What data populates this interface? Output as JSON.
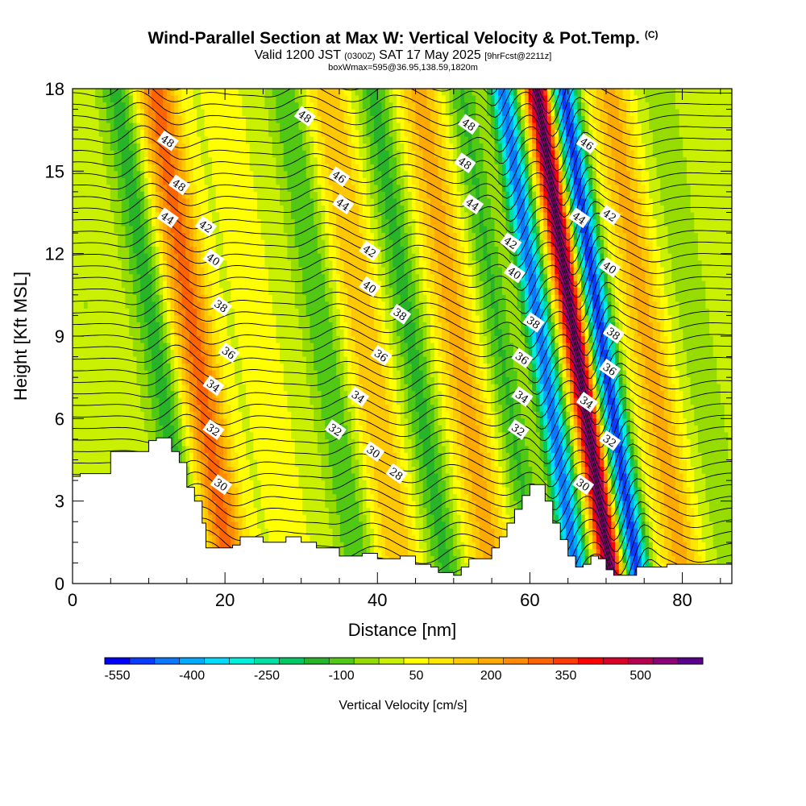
{
  "title": {
    "main": "Wind-Parallel Section at Max W: Vertical Velocity & Pot.Temp.",
    "tag": "(C)",
    "valid_a": "Valid 1200 JST",
    "valid_utc": "(0300Z)",
    "valid_b": "SAT 17 May 2025",
    "fcst": "[9hrFcst@2211z]",
    "box": "boxWmax=595@36.95,138.59,1820m"
  },
  "chart_data": {
    "type": "heatmap",
    "xlabel": "Distance [nm]",
    "ylabel": "Height [Kft MSL]",
    "xlim": [
      0,
      86.5
    ],
    "ylim": [
      0,
      18
    ],
    "x_ticks": [
      0,
      20,
      40,
      60,
      80
    ],
    "y_ticks": [
      0,
      3,
      6,
      9,
      12,
      15,
      18
    ],
    "colorbar": {
      "label": "Vertical Velocity [cm/s]",
      "tick_labels": [
        "-550",
        "-400",
        "-250",
        "-100",
        "50",
        "200",
        "350",
        "500"
      ],
      "tick_values": [
        -550,
        -400,
        -250,
        -100,
        50,
        200,
        350,
        500
      ],
      "levels": [
        -550,
        -500,
        -450,
        -400,
        -350,
        -300,
        -250,
        -200,
        -150,
        -100,
        -50,
        0,
        50,
        100,
        150,
        200,
        250,
        300,
        350,
        400,
        450,
        500,
        550,
        600
      ],
      "colors": [
        "#0000ff",
        "#0a3cff",
        "#0a78ff",
        "#00aaff",
        "#00dcff",
        "#00f0dc",
        "#00e0a0",
        "#00c864",
        "#28b428",
        "#50c814",
        "#96dc00",
        "#c8f000",
        "#ffff00",
        "#ffe600",
        "#ffc800",
        "#ffaa00",
        "#ff8c00",
        "#ff6400",
        "#ff3c00",
        "#ff0000",
        "#dc0028",
        "#b40050",
        "#8c0078",
        "#5a008c"
      ]
    },
    "vertical_velocity_bands": [
      {
        "x": 4,
        "w": -20,
        "width": 3.0
      },
      {
        "x": 12.5,
        "w": -150,
        "width": 2.2
      },
      {
        "x": 17.5,
        "w": 300,
        "width": 2.8
      },
      {
        "x": 26,
        "w": 60,
        "width": 3.0
      },
      {
        "x": 34.5,
        "w": -120,
        "width": 2.2
      },
      {
        "x": 40,
        "w": 180,
        "width": 2.8
      },
      {
        "x": 46,
        "w": -140,
        "width": 2.2
      },
      {
        "x": 52,
        "w": 200,
        "width": 3.0
      },
      {
        "x": 57.5,
        "w": -130,
        "width": 2.0
      },
      {
        "x": 63,
        "w": -450,
        "width": 1.6
      },
      {
        "x": 67.5,
        "w": 595,
        "width": 1.6
      },
      {
        "x": 71,
        "w": -500,
        "width": 1.6
      },
      {
        "x": 77,
        "w": 200,
        "width": 2.8
      },
      {
        "x": 83,
        "w": -40,
        "width": 3.0
      }
    ],
    "terrain": {
      "x": [
        0,
        1,
        5,
        10,
        11,
        13,
        14,
        15,
        16,
        17,
        17.5,
        20,
        21,
        22,
        25,
        28,
        30,
        32,
        35,
        38,
        40,
        43,
        45,
        47,
        48,
        50,
        51,
        52,
        55,
        56,
        57,
        58,
        59,
        60,
        61,
        62,
        63,
        64,
        65,
        66,
        67,
        68,
        69,
        70,
        71,
        72,
        73,
        74,
        78,
        86.5
      ],
      "y": [
        3.9,
        4.0,
        4.8,
        5.2,
        5.3,
        4.8,
        4.4,
        3.5,
        3.0,
        2.2,
        1.3,
        1.3,
        1.4,
        1.7,
        1.5,
        1.7,
        1.5,
        1.3,
        1.0,
        1.1,
        0.9,
        1.0,
        0.7,
        0.6,
        0.4,
        0.3,
        0.6,
        0.9,
        1.3,
        1.7,
        2.2,
        2.7,
        3.2,
        3.6,
        3.6,
        3.0,
        2.2,
        1.6,
        1.0,
        0.6,
        0.7,
        1.0,
        0.9,
        0.5,
        0.3,
        0.3,
        0.3,
        0.6,
        0.7,
        0.7
      ]
    },
    "theta_contours": [
      {
        "value": 28,
        "label_x": 42.5,
        "label_y": 4.0
      },
      {
        "value": 30,
        "label_x": 19.5,
        "label_y": 3.6
      },
      {
        "value": 30,
        "label_x": 39.5,
        "label_y": 4.8
      },
      {
        "value": 30,
        "label_x": 67,
        "label_y": 3.6
      },
      {
        "value": 32,
        "label_x": 18.5,
        "label_y": 5.6
      },
      {
        "value": 32,
        "label_x": 34.5,
        "label_y": 5.6
      },
      {
        "value": 32,
        "label_x": 58.5,
        "label_y": 5.6
      },
      {
        "value": 32,
        "label_x": 70.5,
        "label_y": 5.2
      },
      {
        "value": 34,
        "label_x": 18.5,
        "label_y": 7.2
      },
      {
        "value": 34,
        "label_x": 37.5,
        "label_y": 6.8
      },
      {
        "value": 34,
        "label_x": 59,
        "label_y": 6.8
      },
      {
        "value": 34,
        "label_x": 67.5,
        "label_y": 6.6
      },
      {
        "value": 36,
        "label_x": 20.5,
        "label_y": 8.4
      },
      {
        "value": 36,
        "label_x": 40.5,
        "label_y": 8.3
      },
      {
        "value": 36,
        "label_x": 59,
        "label_y": 8.2
      },
      {
        "value": 36,
        "label_x": 70.5,
        "label_y": 7.8
      },
      {
        "value": 38,
        "label_x": 19.5,
        "label_y": 10.1
      },
      {
        "value": 38,
        "label_x": 43,
        "label_y": 9.8
      },
      {
        "value": 38,
        "label_x": 60.5,
        "label_y": 9.5
      },
      {
        "value": 38,
        "label_x": 71,
        "label_y": 9.1
      },
      {
        "value": 40,
        "label_x": 18.5,
        "label_y": 11.8
      },
      {
        "value": 40,
        "label_x": 39,
        "label_y": 10.8
      },
      {
        "value": 40,
        "label_x": 58,
        "label_y": 11.3
      },
      {
        "value": 40,
        "label_x": 70.5,
        "label_y": 11.5
      },
      {
        "value": 42,
        "label_x": 17.5,
        "label_y": 13.0
      },
      {
        "value": 42,
        "label_x": 39,
        "label_y": 12.1
      },
      {
        "value": 42,
        "label_x": 57.5,
        "label_y": 12.4
      },
      {
        "value": 42,
        "label_x": 70.5,
        "label_y": 13.4
      },
      {
        "value": 44,
        "label_x": 12.5,
        "label_y": 13.3
      },
      {
        "value": 44,
        "label_x": 35.5,
        "label_y": 13.8
      },
      {
        "value": 44,
        "label_x": 52.5,
        "label_y": 13.8
      },
      {
        "value": 44,
        "label_x": 66.5,
        "label_y": 13.3
      },
      {
        "value": 46,
        "label_x": 35,
        "label_y": 14.8
      },
      {
        "value": 46,
        "label_x": 67.5,
        "label_y": 16.0
      },
      {
        "value": 48,
        "label_x": 12.5,
        "label_y": 16.1
      },
      {
        "value": 48,
        "label_x": 14,
        "label_y": 14.5
      },
      {
        "value": 48,
        "label_x": 30.5,
        "label_y": 17.0
      },
      {
        "value": 48,
        "label_x": 52,
        "label_y": 16.7
      },
      {
        "value": 48,
        "label_x": 51.5,
        "label_y": 15.3
      }
    ]
  }
}
